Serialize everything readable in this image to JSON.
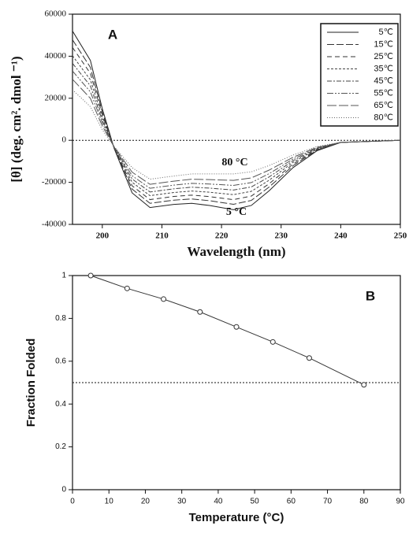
{
  "chart_data": [
    {
      "type": "line",
      "title": "A",
      "x_label": "Wavelength (nm)",
      "y_label": "[θ] (deg. cm². dmol ⁻¹)",
      "x": [
        195,
        198,
        200,
        202,
        205,
        208,
        212,
        215,
        218,
        222,
        225,
        228,
        232,
        236,
        240,
        250
      ],
      "xlim": [
        195,
        250
      ],
      "xticks": [
        200,
        210,
        220,
        230,
        240,
        250
      ],
      "ylim": [
        -40000,
        60000
      ],
      "yticks": [
        -40000,
        -20000,
        0,
        20000,
        40000,
        60000
      ],
      "reference_line": 0,
      "legend": "upper right",
      "annotations": [
        "80 °C",
        "5 °C"
      ],
      "series": [
        {
          "name": "5℃",
          "color": "#222222",
          "dash": "none",
          "values": [
            52000,
            38000,
            15000,
            -4000,
            -25000,
            -32000,
            -30500,
            -30000,
            -31000,
            -33000,
            -31000,
            -24000,
            -13000,
            -5000,
            -1000,
            0
          ]
        },
        {
          "name": "15℃",
          "color": "#333333",
          "dash": "9,3",
          "values": [
            47800,
            34700,
            13500,
            -3850,
            -23200,
            -29975,
            -28475,
            -27900,
            -28750,
            -30450,
            -28600,
            -22200,
            -12100,
            -4700,
            -1000,
            0
          ]
        },
        {
          "name": "25℃",
          "color": "#333333",
          "dash": "6,4",
          "values": [
            44160,
            31840,
            12200,
            -3720,
            -21640,
            -28220,
            -26720,
            -26080,
            -26800,
            -28240,
            -26520,
            -20640,
            -11320,
            -4440,
            -1000,
            0
          ]
        },
        {
          "name": "35℃",
          "color": "#444444",
          "dash": "3,2",
          "values": [
            40240,
            28760,
            10800,
            -3580,
            -19960,
            -26330,
            -24830,
            -24120,
            -24700,
            -25860,
            -24280,
            -18960,
            -10480,
            -4160,
            -1000,
            0
          ]
        },
        {
          "name": "45℃",
          "color": "#444444",
          "dash": "6,2,2,2",
          "values": [
            36600,
            25900,
            9500,
            -3450,
            -18400,
            -24575,
            -23075,
            -22300,
            -22750,
            -23650,
            -22200,
            -17400,
            -9700,
            -3900,
            -1000,
            0
          ]
        },
        {
          "name": "55℃",
          "color": "#555555",
          "dash": "8,2,2,2,2,2",
          "values": [
            32960,
            23040,
            8200,
            -3320,
            -16840,
            -22820,
            -21320,
            -20480,
            -20800,
            -21440,
            -20120,
            -15840,
            -8920,
            -3640,
            -1000,
            0
          ]
        },
        {
          "name": "65℃",
          "color": "#555555",
          "dash": "12,3",
          "values": [
            29040,
            19960,
            6800,
            -3180,
            -15160,
            -20930,
            -19430,
            -18520,
            -18700,
            -19060,
            -17880,
            -14160,
            -8080,
            -3360,
            -1000,
            0
          ]
        },
        {
          "name": "80℃",
          "color": "#666666",
          "dash": "1,2",
          "values": [
            24000,
            16000,
            5000,
            -3000,
            -13000,
            -18500,
            -17000,
            -16000,
            -16000,
            -16000,
            -15000,
            -12000,
            -7000,
            -3000,
            -1000,
            0
          ]
        }
      ]
    },
    {
      "type": "scatter",
      "title": "B",
      "x_label": "Temperature (°C)",
      "y_label": "Fraction Folded",
      "x": [
        5,
        15,
        25,
        35,
        45,
        55,
        65,
        80
      ],
      "values": [
        1.0,
        0.94,
        0.89,
        0.83,
        0.76,
        0.69,
        0.615,
        0.49
      ],
      "color": "#333333",
      "connect": true,
      "xlim": [
        0,
        90
      ],
      "xticks": [
        0,
        10,
        20,
        30,
        40,
        50,
        60,
        70,
        80,
        90
      ],
      "ylim": [
        0,
        1
      ],
      "yticks": [
        0,
        0.2,
        0.4,
        0.6,
        0.8,
        1
      ],
      "reference_line": 0.5
    }
  ]
}
